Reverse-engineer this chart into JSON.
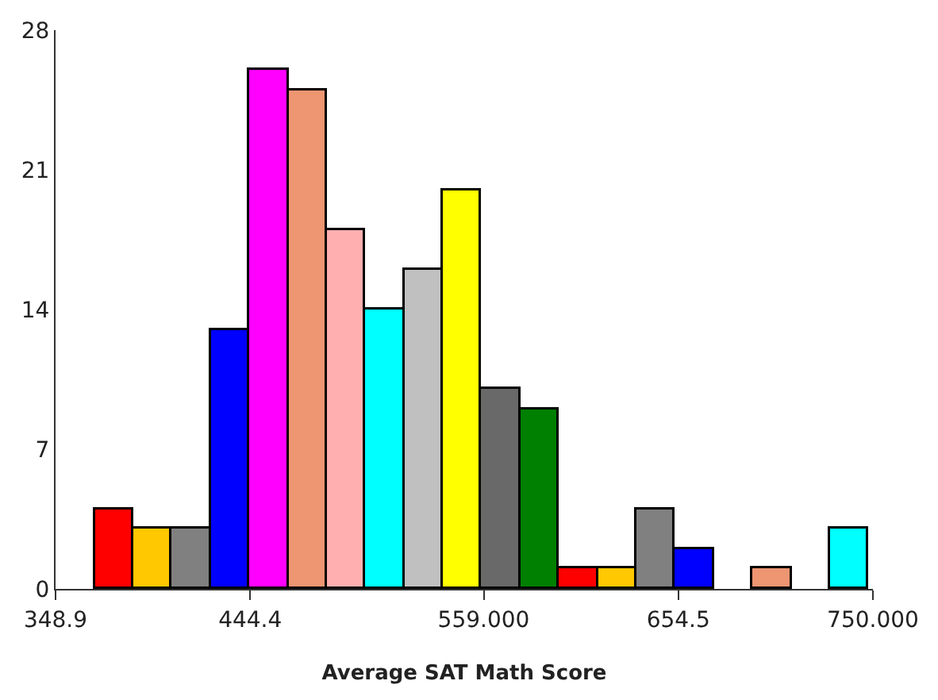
{
  "chart_data": {
    "type": "histogram",
    "xlabel": "Average SAT Math Score",
    "bins": [
      368,
      387,
      406,
      425,
      444,
      463,
      482,
      501,
      520,
      539,
      558,
      577,
      596,
      615,
      634,
      653,
      672,
      691,
      710,
      729,
      748
    ],
    "values": [
      4,
      3,
      3,
      13,
      26,
      25,
      18,
      14,
      16,
      20,
      10,
      9,
      1,
      1,
      4,
      2,
      0,
      1,
      0,
      3
    ],
    "colors": [
      "#ff0000",
      "#ffc800",
      "#808080",
      "#0000ff",
      "#ff00ff",
      "#ee9572",
      "#ffafaf",
      "#00ffff",
      "#c0c0c0",
      "#ffff00",
      "#696969",
      "#008000",
      "#ff0000",
      "#ffc800",
      "#808080",
      "#0000ff",
      null,
      "#ee9572",
      null,
      "#00ffff"
    ],
    "xlim": [
      348.9,
      750
    ],
    "xticks": [
      348.9,
      444.4,
      {
        "value": 559,
        "label": "559.000"
      },
      654.5,
      {
        "value": 750,
        "label": "750.000"
      }
    ],
    "ylim": [
      0,
      28
    ],
    "yticks": [
      0,
      7,
      14,
      21,
      28
    ],
    "grid": false
  }
}
